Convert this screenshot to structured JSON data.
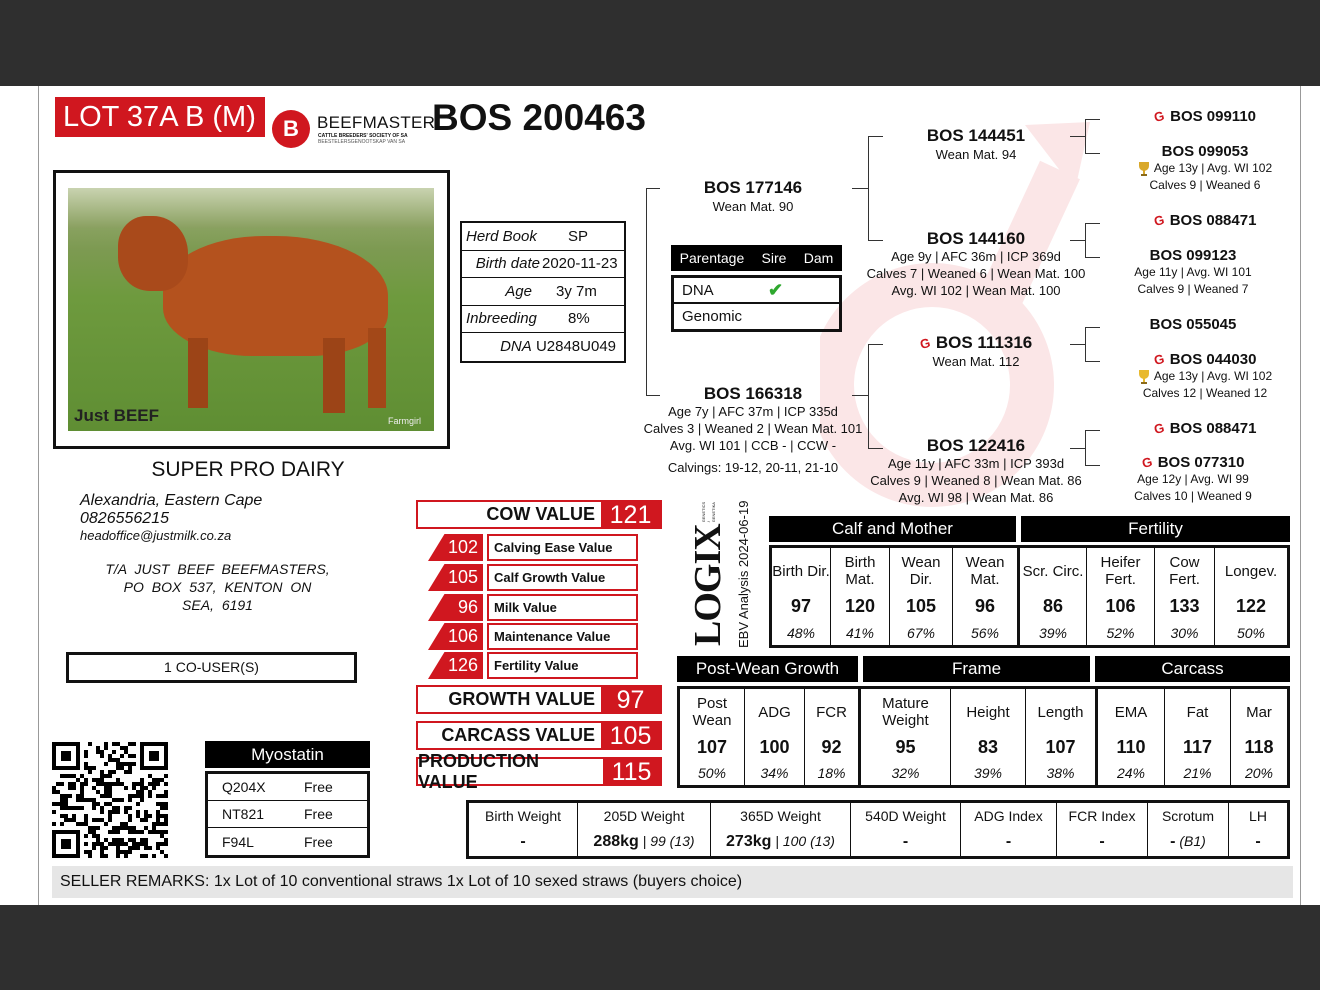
{
  "header": {
    "lot": "LOT 37A B (M)",
    "logo_text": "BEEFMASTER",
    "logo_sub1": "CATTLE BREEDERS' SOCIETY OF SA",
    "logo_sub2": "BEESTELERSGENOOTSKAP VAN SA",
    "animal_id": "BOS 200463"
  },
  "photo": {
    "watermark_left": "Just BEEF",
    "watermark_right": "Farmgirl"
  },
  "info": [
    {
      "label": "Herd Book",
      "value": "SP"
    },
    {
      "label": "Birth date",
      "value": "2020-11-23"
    },
    {
      "label": "Age",
      "value": "3y 7m"
    },
    {
      "label": "Inbreeding",
      "value": "8%"
    },
    {
      "label": "DNA",
      "value": "U2848U049"
    }
  ],
  "breeder": {
    "name": "SUPER PRO DAIRY",
    "location": "Alexandria, Eastern Cape",
    "phone": "0826556215",
    "email": "headoffice@justmilk.co.za",
    "trading_as": "T/A JUST BEEF BEEFMASTERS, PO BOX 537, KENTON ON SEA, 6191",
    "co_users": "1 CO-USER(S)"
  },
  "parentage": {
    "headers": [
      "Parentage",
      "Sire",
      "Dam"
    ],
    "rows": [
      {
        "label": "DNA",
        "sire": "✔",
        "dam": ""
      },
      {
        "label": "Genomic",
        "sire": "",
        "dam": ""
      }
    ]
  },
  "pedigree": {
    "sire": {
      "id": "BOS 177146",
      "details": [
        "Wean Mat. 90"
      ]
    },
    "dam": {
      "id": "BOS 166318",
      "details": [
        "Age 7y | AFC 37m | ICP 335d",
        "Calves 3 | Weaned 2 | Wean Mat. 101",
        "Avg. WI 101 | CCB - | CCW -"
      ],
      "calvings": "Calvings: 19-12, 20-11, 21-10"
    },
    "ss": {
      "id": "BOS 144451",
      "details": [
        "Wean Mat. 94"
      ]
    },
    "sd": {
      "id": "BOS 144160",
      "details": [
        "Age 9y | AFC 36m | ICP 369d",
        "Calves 7 | Weaned 6 | Wean Mat. 100",
        "Avg. WI 102 | Wean Mat. 100"
      ]
    },
    "ds": {
      "id": "BOS 111316",
      "details": [
        "Wean Mat. 112"
      ],
      "gt": true
    },
    "dd": {
      "id": "BOS 122416",
      "details": [
        "Age 11y | AFC 33m | ICP 393d",
        "Calves 9 | Weaned 8 | Wean Mat. 86",
        "Avg. WI 98 | Wean Mat. 86"
      ]
    },
    "sss": {
      "id": "BOS 099110",
      "gt": true
    },
    "ssd": {
      "id": "BOS 099053",
      "details": [
        "Age 13y | Avg. WI 102",
        "Calves 9 | Weaned 6"
      ],
      "trophy": true
    },
    "sds": {
      "id": "BOS 088471",
      "gt": true
    },
    "sdd": {
      "id": "BOS 099123",
      "details": [
        "Age 11y | Avg. WI 101",
        "Calves 9 | Weaned 7"
      ]
    },
    "dss": {
      "id": "BOS 055045"
    },
    "dsd": {
      "id": "BOS 044030",
      "details": [
        "Age 13y | Avg. WI 102",
        "Calves 12 | Weaned 12"
      ],
      "gt": true,
      "trophy": true
    },
    "dds": {
      "id": "BOS 088471",
      "gt": true
    },
    "ddd": {
      "id": "BOS 077310",
      "details": [
        "Age 12y | Avg. WI 99",
        "Calves 10 | Weaned 9"
      ],
      "gt": true
    }
  },
  "values": {
    "cow": {
      "label": "COW VALUE",
      "value": "121"
    },
    "sub": [
      {
        "value": "102",
        "label": "Calving Ease Value"
      },
      {
        "value": "105",
        "label": "Calf Growth Value"
      },
      {
        "value": "96",
        "label": "Milk Value"
      },
      {
        "value": "106",
        "label": "Maintenance Value"
      },
      {
        "value": "126",
        "label": "Fertility Value"
      }
    ],
    "growth": {
      "label": "GROWTH VALUE",
      "value": "97"
    },
    "carcass": {
      "label": "CARCASS VALUE",
      "value": "105"
    },
    "production": {
      "label": "PRODUCTION VALUE",
      "value": "115"
    }
  },
  "logix": {
    "brand": "LOGIX",
    "tagline": "GENETICS / GENETIKA",
    "analysis": "EBV Analysis 2024-06-19"
  },
  "ebv1": {
    "groups": [
      "Calf and Mother",
      "Fertility"
    ],
    "cols": [
      {
        "h": "Birth Dir.",
        "v": "97",
        "p": "48%"
      },
      {
        "h": "Birth Mat.",
        "v": "120",
        "p": "41%"
      },
      {
        "h": "Wean Dir.",
        "v": "105",
        "p": "67%"
      },
      {
        "h": "Wean Mat.",
        "v": "96",
        "p": "56%"
      },
      {
        "h": "Scr. Circ.",
        "v": "86",
        "p": "39%"
      },
      {
        "h": "Heifer Fert.",
        "v": "106",
        "p": "52%"
      },
      {
        "h": "Cow Fert.",
        "v": "133",
        "p": "30%"
      },
      {
        "h": "Longev.",
        "v": "122",
        "p": "50%"
      }
    ]
  },
  "ebv2": {
    "groups": [
      "Post-Wean Growth",
      "Frame",
      "Carcass"
    ],
    "cols": [
      {
        "h": "Post Wean",
        "v": "107",
        "p": "50%"
      },
      {
        "h": "ADG",
        "v": "100",
        "p": "34%"
      },
      {
        "h": "FCR",
        "v": "92",
        "p": "18%"
      },
      {
        "h": "Mature Weight",
        "v": "95",
        "p": "32%"
      },
      {
        "h": "Height",
        "v": "83",
        "p": "39%"
      },
      {
        "h": "Length",
        "v": "107",
        "p": "38%"
      },
      {
        "h": "EMA",
        "v": "110",
        "p": "24%"
      },
      {
        "h": "Fat",
        "v": "117",
        "p": "21%"
      },
      {
        "h": "Mar",
        "v": "118",
        "p": "20%"
      }
    ]
  },
  "weights": [
    {
      "h": "Birth Weight",
      "v": "-",
      "s": ""
    },
    {
      "h": "205D Weight",
      "v": "288kg",
      "s": " | 99 (13)"
    },
    {
      "h": "365D Weight",
      "v": "273kg",
      "s": " | 100 (13)"
    },
    {
      "h": "540D Weight",
      "v": "-",
      "s": ""
    },
    {
      "h": "ADG Index",
      "v": "-",
      "s": ""
    },
    {
      "h": "FCR Index",
      "v": "-",
      "s": ""
    },
    {
      "h": "Scrotum",
      "v": "-",
      "s": " (B1)"
    },
    {
      "h": "LH",
      "v": "-",
      "s": ""
    }
  ],
  "myostatin": {
    "title": "Myostatin",
    "rows": [
      {
        "gene": "Q204X",
        "status": "Free"
      },
      {
        "gene": "NT821",
        "status": "Free"
      },
      {
        "gene": "F94L",
        "status": "Free"
      }
    ]
  },
  "remarks": {
    "label": "SELLER REMARKS:",
    "text": " 1x Lot of 10 conventional straws 1x Lot of 10 sexed straws (buyers choice)"
  },
  "colors": {
    "brand_red": "#d0171f",
    "check_green": "#2ea82e",
    "watermark_pink": "#fbe6e7"
  }
}
